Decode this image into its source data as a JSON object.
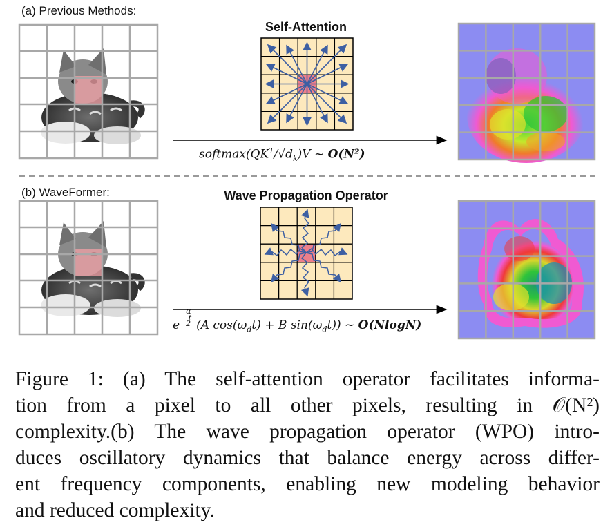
{
  "panel_a": {
    "label": "(a) Previous Methods:",
    "operator_title": "Self-Attention",
    "formula": {
      "main": "softmax(QK",
      "sup": "T",
      "mid": "/√d",
      "sub": "k",
      "tail": ")V ~ ",
      "complexity": "O(N²)"
    }
  },
  "panel_b": {
    "label": "(b) WaveFormer:",
    "operator_title": "Wave Propagation Operator",
    "formula": {
      "base": "e",
      "exp_num": "α",
      "exp_rest": "−  t",
      "exp_den": "2",
      "body": "(A cos(ω",
      "sub1": "d",
      "body2": "t) + B sin(ω",
      "sub2": "d",
      "body3": "t)) ~ ",
      "complexity": "O(NlogN)"
    }
  },
  "caption": {
    "line1": "Figure 1: (a) The self-attention operator facilitates informa-",
    "line2": "tion from a pixel to all other pixels, resulting in 𝒪(N²)",
    "line3": "complexity.(b) The wave propagation operator (WPO) intro-",
    "line4": "duces oscillatory dynamics that balance energy across differ-",
    "line5": "ent frequency components, enabling new modeling behavior",
    "line6": "and reduced complexity."
  },
  "colors": {
    "grid": "#a8a8a8",
    "cell": "#fde9bd",
    "center": "#ee7f8a",
    "arrow": "#3d5fa3",
    "heat_bg": "#8c8cf2"
  }
}
